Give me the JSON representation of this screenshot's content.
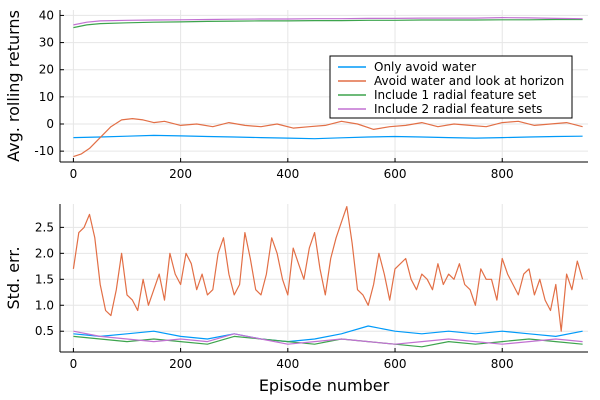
{
  "chart_data": [
    {
      "type": "line",
      "ylabel": "Avg. rolling returns",
      "xlabel": "",
      "xlim": [
        -25,
        960
      ],
      "ylim": [
        -14,
        42
      ],
      "xticks": [
        0,
        200,
        400,
        600,
        800
      ],
      "yticks": [
        -10,
        0,
        10,
        20,
        30,
        40
      ],
      "grid": true,
      "legend": "top-right",
      "series": [
        {
          "name": "Only avoid water",
          "color": "#009af9",
          "x": [
            0,
            50,
            100,
            150,
            200,
            250,
            300,
            350,
            400,
            450,
            500,
            550,
            600,
            650,
            700,
            750,
            800,
            850,
            900,
            950
          ],
          "y": [
            -5,
            -4.8,
            -4.5,
            -4.2,
            -4.4,
            -4.6,
            -4.8,
            -5,
            -5.2,
            -5.4,
            -5.1,
            -4.8,
            -4.6,
            -4.8,
            -5,
            -5.2,
            -5,
            -4.8,
            -4.6,
            -4.5
          ]
        },
        {
          "name": "Avoid water and look at horizon",
          "color": "#e26f46",
          "x": [
            0,
            15,
            30,
            50,
            70,
            90,
            110,
            130,
            150,
            170,
            200,
            230,
            260,
            290,
            320,
            350,
            380,
            410,
            440,
            470,
            500,
            530,
            560,
            590,
            620,
            650,
            680,
            710,
            740,
            770,
            800,
            830,
            860,
            890,
            920,
            950
          ],
          "y": [
            -12,
            -11,
            -9,
            -5,
            -1,
            1.5,
            2,
            1.5,
            0.5,
            1,
            -0.5,
            0,
            -1,
            0.5,
            -0.5,
            -1,
            0,
            -1.5,
            -1,
            -0.5,
            1,
            0,
            -2,
            -1,
            -0.5,
            0.5,
            -1,
            0,
            -0.5,
            -1,
            0.5,
            1,
            -0.5,
            0,
            0.5,
            -1
          ]
        },
        {
          "name": "Include 1 radial feature set",
          "color": "#3da44d",
          "x": [
            0,
            25,
            50,
            100,
            150,
            200,
            250,
            300,
            350,
            400,
            450,
            500,
            550,
            600,
            650,
            700,
            750,
            800,
            850,
            900,
            950
          ],
          "y": [
            35.5,
            36.5,
            37,
            37.3,
            37.5,
            37.6,
            37.8,
            37.9,
            38,
            38,
            38.1,
            38.1,
            38.2,
            38.2,
            38.3,
            38.3,
            38.3,
            38.4,
            38.4,
            38.5,
            38.5
          ]
        },
        {
          "name": "Include 2 radial feature sets",
          "color": "#c271d2",
          "x": [
            0,
            25,
            50,
            100,
            150,
            200,
            250,
            300,
            350,
            400,
            450,
            500,
            550,
            600,
            650,
            700,
            750,
            800,
            850,
            900,
            950
          ],
          "y": [
            36.5,
            37.5,
            38,
            38.2,
            38.3,
            38.4,
            38.5,
            38.6,
            38.7,
            38.7,
            38.8,
            38.8,
            38.9,
            38.9,
            39,
            39,
            39,
            39.2,
            39.1,
            38.9,
            38.8
          ]
        }
      ]
    },
    {
      "type": "line",
      "ylabel": "Std. err.",
      "xlabel": "Episode number",
      "xlim": [
        -25,
        960
      ],
      "ylim": [
        0.1,
        2.95
      ],
      "xticks": [
        0,
        200,
        400,
        600,
        800
      ],
      "yticks": [
        0.5,
        1.0,
        1.5,
        2.0,
        2.5
      ],
      "grid": true,
      "series": [
        {
          "name": "Only avoid water",
          "color": "#009af9",
          "x": [
            0,
            50,
            100,
            150,
            200,
            250,
            300,
            350,
            400,
            450,
            500,
            550,
            600,
            650,
            700,
            750,
            800,
            850,
            900,
            950
          ],
          "y": [
            0.45,
            0.4,
            0.45,
            0.5,
            0.4,
            0.35,
            0.45,
            0.35,
            0.3,
            0.35,
            0.45,
            0.6,
            0.5,
            0.45,
            0.5,
            0.45,
            0.5,
            0.45,
            0.4,
            0.5
          ]
        },
        {
          "name": "Avoid water and look at horizon",
          "color": "#e26f46",
          "x": [
            0,
            10,
            20,
            30,
            40,
            50,
            60,
            70,
            80,
            90,
            100,
            110,
            120,
            130,
            140,
            150,
            160,
            170,
            180,
            190,
            200,
            210,
            220,
            230,
            240,
            250,
            260,
            270,
            280,
            290,
            300,
            310,
            320,
            330,
            340,
            350,
            360,
            370,
            380,
            390,
            400,
            410,
            420,
            430,
            440,
            450,
            460,
            470,
            480,
            490,
            500,
            510,
            520,
            530,
            540,
            550,
            560,
            570,
            580,
            590,
            600,
            610,
            620,
            630,
            640,
            650,
            660,
            670,
            680,
            690,
            700,
            710,
            720,
            730,
            740,
            750,
            760,
            770,
            780,
            790,
            800,
            810,
            820,
            830,
            840,
            850,
            860,
            870,
            880,
            890,
            900,
            910,
            920,
            930,
            940,
            950
          ],
          "y": [
            1.7,
            2.4,
            2.5,
            2.75,
            2.3,
            1.4,
            0.9,
            0.8,
            1.3,
            2.0,
            1.2,
            1.1,
            0.9,
            1.5,
            1.0,
            1.3,
            1.6,
            1.1,
            2.0,
            1.6,
            1.4,
            2.0,
            1.8,
            1.3,
            1.6,
            1.2,
            1.3,
            2.0,
            2.3,
            1.6,
            1.2,
            1.4,
            2.4,
            1.9,
            1.3,
            1.2,
            1.6,
            2.3,
            2.0,
            1.5,
            1.2,
            2.1,
            1.8,
            1.5,
            2.1,
            2.4,
            1.7,
            1.2,
            1.9,
            2.3,
            2.6,
            2.9,
            2.2,
            1.3,
            1.2,
            1.0,
            1.4,
            2.0,
            1.6,
            1.1,
            1.7,
            1.8,
            1.9,
            1.5,
            1.3,
            1.6,
            1.5,
            1.3,
            1.8,
            1.4,
            1.6,
            1.5,
            1.8,
            1.4,
            1.3,
            1.0,
            1.7,
            1.5,
            1.5,
            1.1,
            1.9,
            1.6,
            1.4,
            1.2,
            1.6,
            1.7,
            1.2,
            1.5,
            1.1,
            0.9,
            1.4,
            0.5,
            1.6,
            1.3,
            1.85,
            1.5
          ]
        },
        {
          "name": "Include 1 radial feature set",
          "color": "#3da44d",
          "x": [
            0,
            50,
            100,
            150,
            200,
            250,
            300,
            350,
            400,
            450,
            500,
            550,
            600,
            650,
            700,
            750,
            800,
            850,
            900,
            950
          ],
          "y": [
            0.4,
            0.35,
            0.3,
            0.35,
            0.3,
            0.25,
            0.4,
            0.35,
            0.3,
            0.25,
            0.35,
            0.3,
            0.25,
            0.2,
            0.3,
            0.25,
            0.3,
            0.35,
            0.3,
            0.25
          ]
        },
        {
          "name": "Include 2 radial feature sets",
          "color": "#c271d2",
          "x": [
            0,
            50,
            100,
            150,
            200,
            250,
            300,
            350,
            400,
            450,
            500,
            550,
            600,
            650,
            700,
            750,
            800,
            850,
            900,
            950
          ],
          "y": [
            0.5,
            0.4,
            0.35,
            0.3,
            0.35,
            0.3,
            0.45,
            0.35,
            0.25,
            0.3,
            0.35,
            0.3,
            0.25,
            0.3,
            0.35,
            0.3,
            0.25,
            0.3,
            0.35,
            0.3
          ]
        }
      ]
    }
  ]
}
